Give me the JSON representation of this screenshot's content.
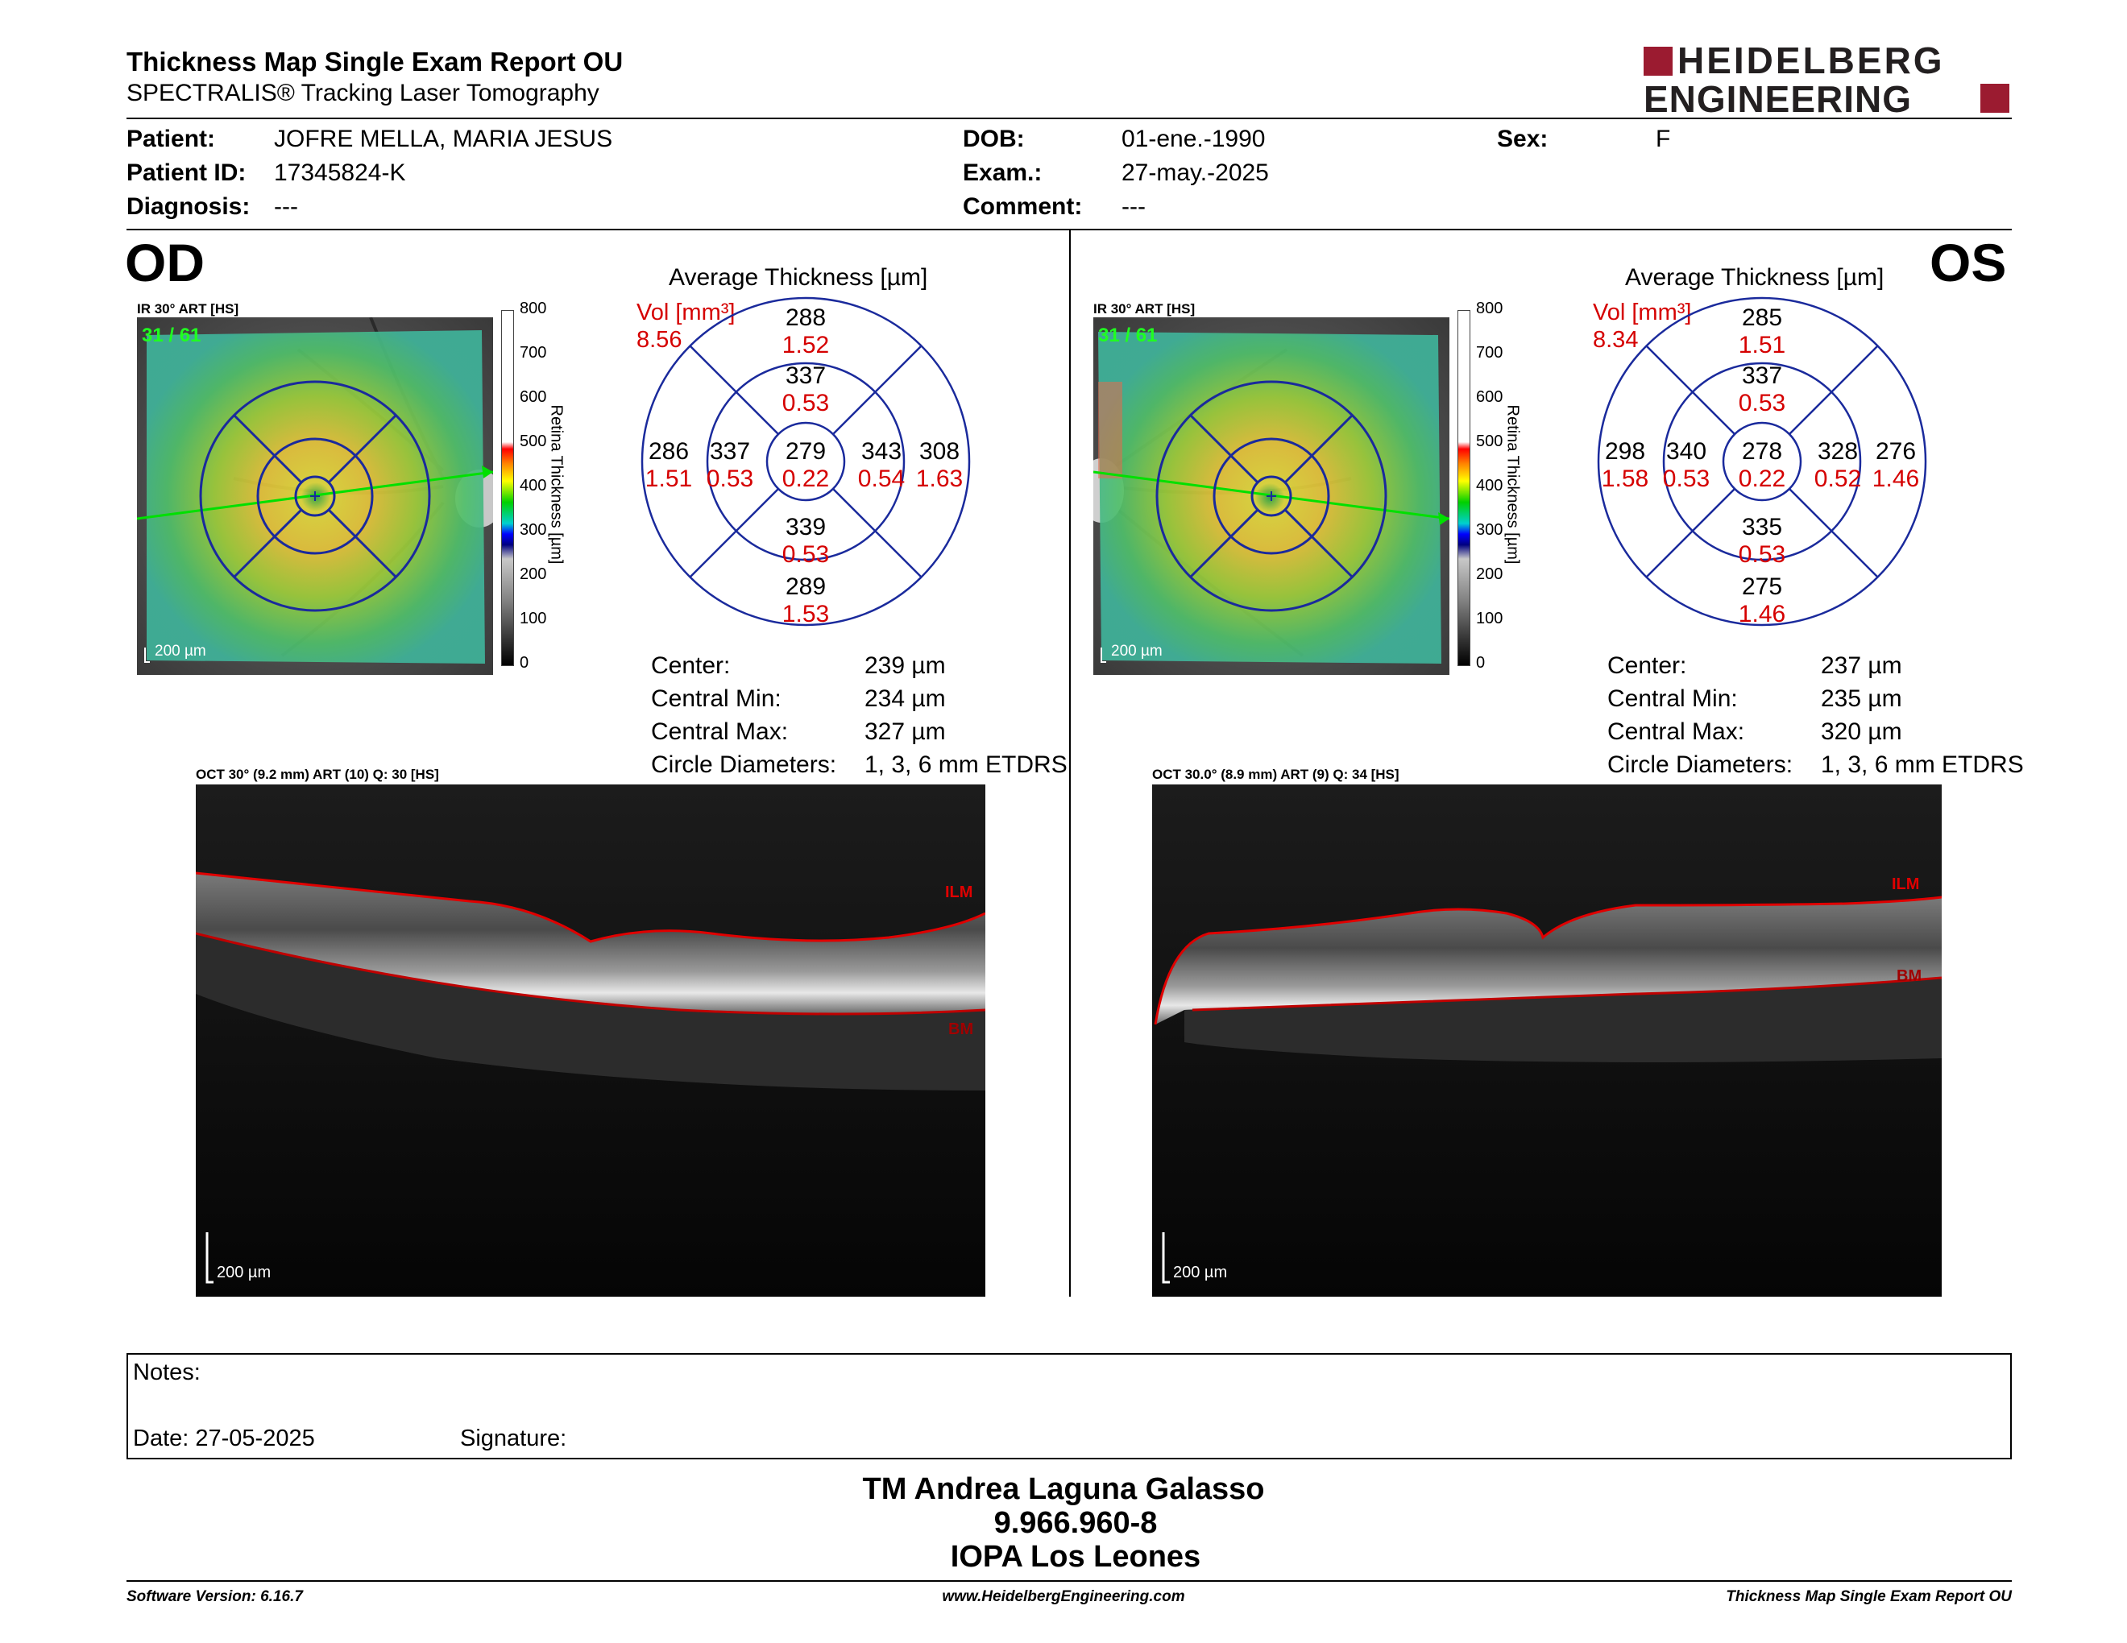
{
  "report": {
    "title": "Thickness Map Single Exam Report OU",
    "subtitle": "SPECTRALIS® Tracking Laser Tomography",
    "logo_line1": "HEIDELBERG",
    "logo_line2": "ENGINEERING"
  },
  "patient": {
    "patient_label": "Patient:",
    "patient_value": "JOFRE MELLA, MARIA JESUS",
    "id_label": "Patient ID:",
    "id_value": "17345824-K",
    "diag_label": "Diagnosis:",
    "diag_value": "---",
    "dob_label": "DOB:",
    "dob_value": "01-ene.-1990",
    "exam_label": "Exam.:",
    "exam_value": "27-may.-2025",
    "comment_label": "Comment:",
    "comment_value": "---",
    "sex_label": "Sex:",
    "sex_value": "F"
  },
  "od": {
    "eye": "OD",
    "fundus_caption": "IR 30° ART [HS]",
    "fundus_counter": "31 / 61",
    "scale_label": "200 µm",
    "avg_title": "Average Thickness [µm]",
    "vol_label": "Vol [mm³]",
    "vol_value": "8.56",
    "grid": {
      "outer_top": "288",
      "outer_top_vol": "1.52",
      "inner_top": "337",
      "inner_top_vol": "0.53",
      "outer_left": "286",
      "outer_left_vol": "1.51",
      "inner_left": "337",
      "inner_left_vol": "0.53",
      "center": "279",
      "center_vol": "0.22",
      "inner_right": "343",
      "inner_right_vol": "0.54",
      "outer_right": "308",
      "outer_right_vol": "1.63",
      "inner_bottom": "339",
      "inner_bottom_vol": "0.53",
      "outer_bottom": "289",
      "outer_bottom_vol": "1.53"
    },
    "center_label": "Center:",
    "center_value": "239 µm",
    "cmin_label": "Central Min:",
    "cmin_value": "234 µm",
    "cmax_label": "Central Max:",
    "cmax_value": "327 µm",
    "circ_label": "Circle Diameters:",
    "circ_value": "1, 3, 6 mm ETDRS",
    "oct_caption": "OCT 30° (9.2 mm) ART (10) Q: 30 [HS]",
    "ilm": "ILM",
    "bm": "BM",
    "oct_scale": "200 µm"
  },
  "os": {
    "eye": "OS",
    "fundus_caption": "IR 30° ART [HS]",
    "fundus_counter": "31 / 61",
    "scale_label": "200 µm",
    "avg_title": "Average Thickness [µm]",
    "vol_label": "Vol [mm³]",
    "vol_value": "8.34",
    "grid": {
      "outer_top": "285",
      "outer_top_vol": "1.51",
      "inner_top": "337",
      "inner_top_vol": "0.53",
      "outer_left": "298",
      "outer_left_vol": "1.58",
      "inner_left": "340",
      "inner_left_vol": "0.53",
      "center": "278",
      "center_vol": "0.22",
      "inner_right": "328",
      "inner_right_vol": "0.52",
      "outer_right": "276",
      "outer_right_vol": "1.46",
      "inner_bottom": "335",
      "inner_bottom_vol": "0.53",
      "outer_bottom": "275",
      "outer_bottom_vol": "1.46"
    },
    "center_label": "Center:",
    "center_value": "237 µm",
    "cmin_label": "Central Min:",
    "cmin_value": "235 µm",
    "cmax_label": "Central Max:",
    "cmax_value": "320 µm",
    "circ_label": "Circle Diameters:",
    "circ_value": "1, 3, 6 mm ETDRS",
    "oct_caption": "OCT 30.0° (8.9 mm) ART (9) Q: 34 [HS]",
    "ilm": "ILM",
    "bm": "BM",
    "oct_scale": "200 µm"
  },
  "colorbar": {
    "label": "Retina  Thickness [µm]",
    "ticks": [
      "800",
      "700",
      "600",
      "500",
      "400",
      "300",
      "200",
      "100",
      "0"
    ]
  },
  "notes": {
    "notes_label": "Notes:",
    "date_label": "Date: 27-05-2025",
    "signature_label": "Signature:"
  },
  "signatory": {
    "name": "TM Andrea Laguna Galasso",
    "rut": "9.966.960-8",
    "org": "IOPA Los Leones"
  },
  "footer": {
    "software": "Software Version: 6.16.7",
    "website": "www.HeidelbergEngineering.com",
    "report_name": "Thickness Map Single Exam Report OU"
  },
  "colors": {
    "accent_red": "#9b1b30",
    "grid_blue": "#1a2a9c",
    "value_red": "#d50000"
  }
}
